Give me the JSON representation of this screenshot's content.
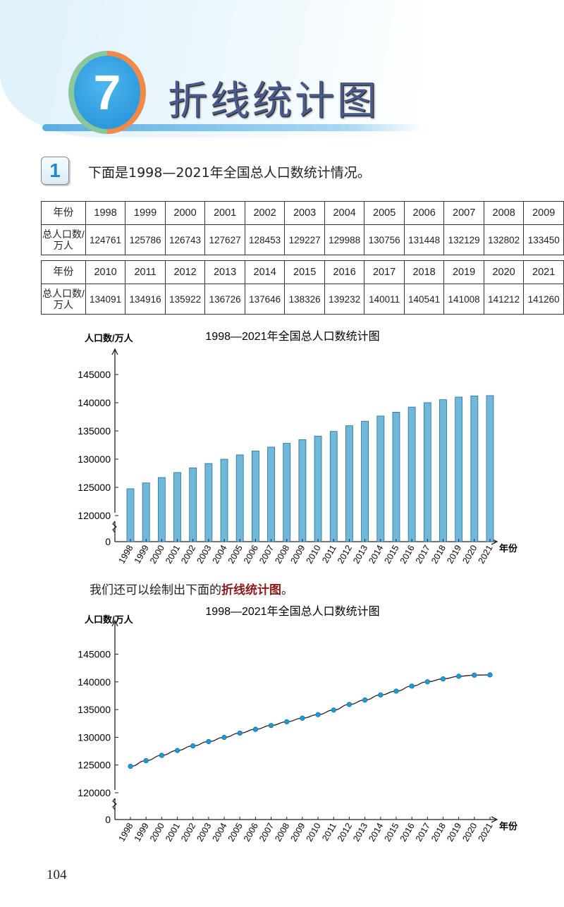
{
  "chapter": {
    "number": "7",
    "title": "折线统计图"
  },
  "question": {
    "number": "1",
    "text": "下面是1998—2021年全国总人口数统计情况。"
  },
  "table": {
    "row_header_year": "年份",
    "row_header_pop": "总人口数/万人",
    "blocks": [
      {
        "years": [
          "1998",
          "1999",
          "2000",
          "2001",
          "2002",
          "2003",
          "2004",
          "2005",
          "2006",
          "2007",
          "2008",
          "2009"
        ],
        "values": [
          "124761",
          "125786",
          "126743",
          "127627",
          "128453",
          "129227",
          "129988",
          "130756",
          "131448",
          "132129",
          "132802",
          "133450"
        ]
      },
      {
        "years": [
          "2010",
          "2011",
          "2012",
          "2013",
          "2014",
          "2015",
          "2016",
          "2017",
          "2018",
          "2019",
          "2020",
          "2021"
        ],
        "values": [
          "134091",
          "134916",
          "135922",
          "136726",
          "137646",
          "138326",
          "139232",
          "140011",
          "140541",
          "141008",
          "141212",
          "141260"
        ]
      }
    ]
  },
  "sentence": {
    "before": "我们还可以绘制出下面的",
    "highlight": "折线统计图",
    "after": "。"
  },
  "page_number": "104",
  "chart_data": [
    {
      "type": "bar",
      "title": "1998—2021年全国总人口数统计图",
      "xlabel": "年份",
      "ylabel": "人口数/万人",
      "categories": [
        "1998",
        "1999",
        "2000",
        "2001",
        "2002",
        "2003",
        "2004",
        "2005",
        "2006",
        "2007",
        "2008",
        "2009",
        "2010",
        "2011",
        "2012",
        "2013",
        "2014",
        "2015",
        "2016",
        "2017",
        "2018",
        "2019",
        "2020",
        "2021"
      ],
      "values": [
        124761,
        125786,
        126743,
        127627,
        128453,
        129227,
        129988,
        130756,
        131448,
        132129,
        132802,
        133450,
        134091,
        134916,
        135922,
        136726,
        137646,
        138326,
        139232,
        140011,
        140541,
        141008,
        141212,
        141260
      ],
      "yticks": [
        "0",
        "120000",
        "125000",
        "130000",
        "135000",
        "140000",
        "145000"
      ],
      "ylim": [
        120000,
        145000
      ],
      "axis_break": true,
      "grid": false,
      "bar_color": "#6fb8d9"
    },
    {
      "type": "line",
      "title": "1998—2021年全国总人口数统计图",
      "xlabel": "年份",
      "ylabel": "人口数/万人",
      "categories": [
        "1998",
        "1999",
        "2000",
        "2001",
        "2002",
        "2003",
        "2004",
        "2005",
        "2006",
        "2007",
        "2008",
        "2009",
        "2010",
        "2011",
        "2012",
        "2013",
        "2014",
        "2015",
        "2016",
        "2017",
        "2018",
        "2019",
        "2020",
        "2021"
      ],
      "values": [
        124761,
        125786,
        126743,
        127627,
        128453,
        129227,
        129988,
        130756,
        131448,
        132129,
        132802,
        133450,
        134091,
        134916,
        135922,
        136726,
        137646,
        138326,
        139232,
        140011,
        140541,
        141008,
        141212,
        141260
      ],
      "yticks": [
        "0",
        "120000",
        "125000",
        "130000",
        "135000",
        "140000",
        "145000"
      ],
      "ylim": [
        120000,
        145000
      ],
      "axis_break": true,
      "grid": false,
      "marker_color": "#1e9ad6"
    }
  ]
}
